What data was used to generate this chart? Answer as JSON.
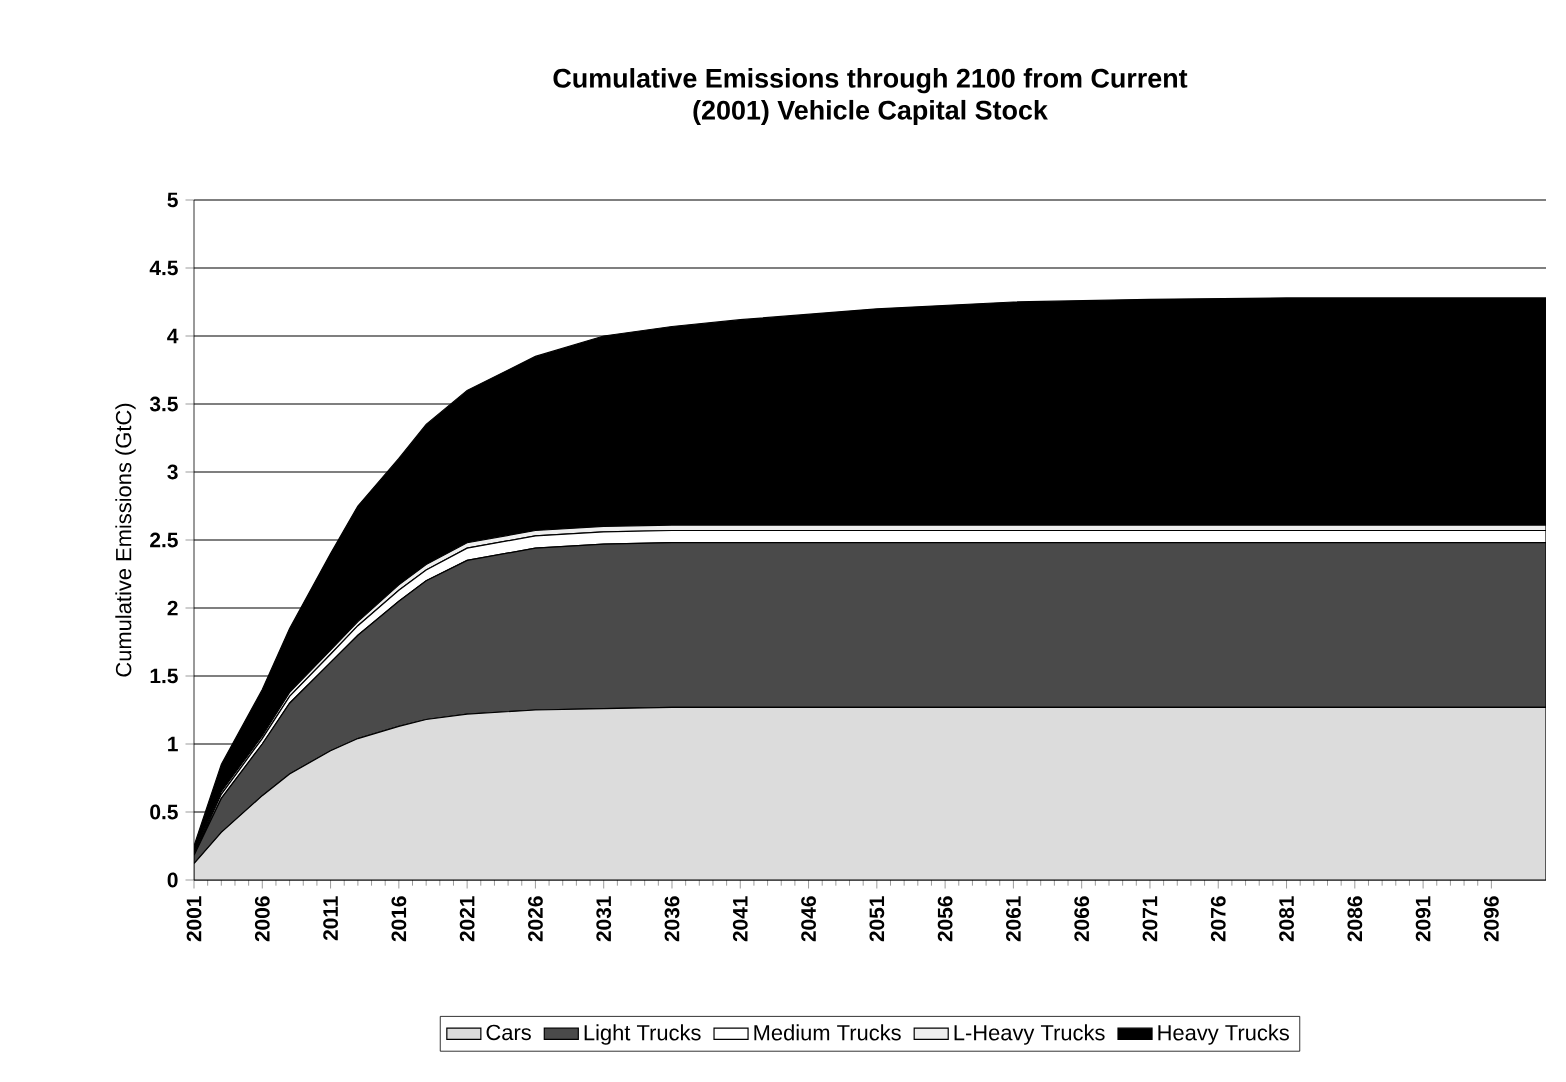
{
  "chart_data": {
    "type": "area",
    "stacked": true,
    "title": "Cumulative Emissions through 2100 from Current\n(2001) Vehicle Capital Stock",
    "ylabel": "Cumulative Emissions (GtC)",
    "x": [
      2001,
      2003,
      2006,
      2008,
      2011,
      2013,
      2016,
      2018,
      2021,
      2026,
      2031,
      2036,
      2041,
      2051,
      2061,
      2071,
      2081,
      2091,
      2100
    ],
    "series": [
      {
        "name": "Cars",
        "color": "#dcdcdc",
        "values": [
          0.12,
          0.35,
          0.62,
          0.78,
          0.95,
          1.04,
          1.13,
          1.18,
          1.22,
          1.25,
          1.26,
          1.27,
          1.27,
          1.27,
          1.27,
          1.27,
          1.27,
          1.27,
          1.27
        ]
      },
      {
        "name": "Light Trucks",
        "color": "#4a4a4a",
        "values": [
          0.06,
          0.25,
          0.38,
          0.52,
          0.65,
          0.76,
          0.92,
          1.02,
          1.13,
          1.19,
          1.21,
          1.21,
          1.21,
          1.21,
          1.21,
          1.21,
          1.21,
          1.21,
          1.21
        ]
      },
      {
        "name": "Medium Trucks",
        "color": "#ffffff",
        "values": [
          0.01,
          0.03,
          0.04,
          0.05,
          0.06,
          0.07,
          0.08,
          0.08,
          0.09,
          0.09,
          0.09,
          0.09,
          0.09,
          0.09,
          0.09,
          0.09,
          0.09,
          0.09,
          0.09
        ]
      },
      {
        "name": "L-Heavy Trucks",
        "color": "#eeeeee",
        "values": [
          0.01,
          0.02,
          0.02,
          0.03,
          0.03,
          0.03,
          0.04,
          0.04,
          0.04,
          0.04,
          0.04,
          0.04,
          0.04,
          0.04,
          0.04,
          0.04,
          0.04,
          0.04,
          0.04
        ]
      },
      {
        "name": "Heavy Trucks",
        "color": "#000000",
        "values": [
          0.05,
          0.2,
          0.34,
          0.47,
          0.71,
          0.85,
          0.93,
          1.03,
          1.12,
          1.28,
          1.4,
          1.46,
          1.51,
          1.59,
          1.64,
          1.66,
          1.67,
          1.67,
          1.67
        ]
      }
    ],
    "xlim": [
      2001,
      2100
    ],
    "xticks": [
      2001,
      2006,
      2011,
      2016,
      2021,
      2026,
      2031,
      2036,
      2041,
      2046,
      2051,
      2056,
      2061,
      2066,
      2071,
      2076,
      2081,
      2086,
      2091,
      2096
    ],
    "ylim": [
      0,
      5
    ],
    "yticks": [
      0,
      0.5,
      1,
      1.5,
      2,
      2.5,
      3,
      3.5,
      4,
      4.5,
      5
    ],
    "grid": "y",
    "legend": "bottom"
  }
}
